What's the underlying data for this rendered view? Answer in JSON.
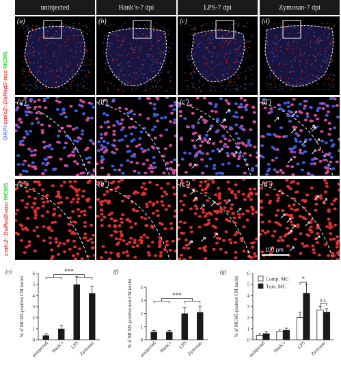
{
  "columns": [
    "uninjected",
    "Hank’s-7 dpi",
    "LPS-7 dpi",
    "Zymosan-7 dpi"
  ],
  "panel_labels": {
    "row1": [
      "(a)",
      "(b)",
      "(c)",
      "(d)"
    ],
    "row2": [
      "(a′)",
      "(b′)",
      "(c′)",
      "(d′)"
    ],
    "row3": [
      "(a″)",
      "(b″)",
      "(c″)",
      "(d″)"
    ]
  },
  "row_labels": {
    "top": {
      "dapi": "DAPI",
      "sep1": "/",
      "cmlc2": "cmlc2::DsRed2-nuc",
      "sep2": "/",
      "mcm5": "MCM5"
    },
    "bottom": {
      "cmlc2": "cmlc2::DsRed2-nuc",
      "sep": "/",
      "mcm5": "MCM5"
    }
  },
  "scale_bar": "100 µm",
  "colors": {
    "dapi": "#3c5fe0",
    "dsred": "#e23030",
    "mcm5": "#3fd13f",
    "bar": "#1a1a1a"
  },
  "chart_data": [
    {
      "type": "bar",
      "panel": "(e)",
      "ylabel": "% of MCM5-positive CM nuclei",
      "categories": [
        "uninjected",
        "Hank’s",
        "LPS",
        "Zymosan"
      ],
      "values": [
        0.4,
        1.0,
        5.0,
        4.2
      ],
      "errors": [
        0.15,
        0.3,
        0.7,
        0.6
      ],
      "ylim": [
        0,
        6
      ],
      "yticks": [
        "0",
        "1",
        "2",
        "3",
        "4",
        "5",
        "6"
      ],
      "significance": "***"
    },
    {
      "type": "bar",
      "panel": "(f)",
      "ylabel": "% of MCM5-positive non-CM nuclei",
      "categories": [
        "uninjected",
        "Hank’s",
        "LPS",
        "Zymosan"
      ],
      "values": [
        0.6,
        0.6,
        2.0,
        2.1
      ],
      "errors": [
        0.1,
        0.1,
        0.45,
        0.45
      ],
      "ylim": [
        0,
        4
      ],
      "yticks": [
        "0",
        "1",
        "2",
        "3",
        "4"
      ],
      "significance": "***"
    },
    {
      "type": "bar",
      "panel": "(g)",
      "ylabel": "% of MCM5-positive CM nuclei",
      "categories": [
        "uninjected",
        "Hank’s",
        "LPS",
        "Zymosan"
      ],
      "series": [
        {
          "name": "Comp. MC",
          "values": [
            0.4,
            0.75,
            2.0,
            2.7
          ],
          "errors": [
            0.15,
            0.15,
            0.5,
            0.3
          ],
          "fill": "#ffffff"
        },
        {
          "name": "Trab. MC",
          "values": [
            0.55,
            0.85,
            4.2,
            2.5
          ],
          "errors": [
            0.2,
            0.2,
            0.8,
            0.3
          ],
          "fill": "#1a1a1a"
        }
      ],
      "ylim": [
        0,
        6
      ],
      "yticks": [
        "0",
        "1",
        "2",
        "3",
        "4",
        "5",
        "6"
      ],
      "annotations": [
        "*",
        "n.s."
      ]
    }
  ]
}
